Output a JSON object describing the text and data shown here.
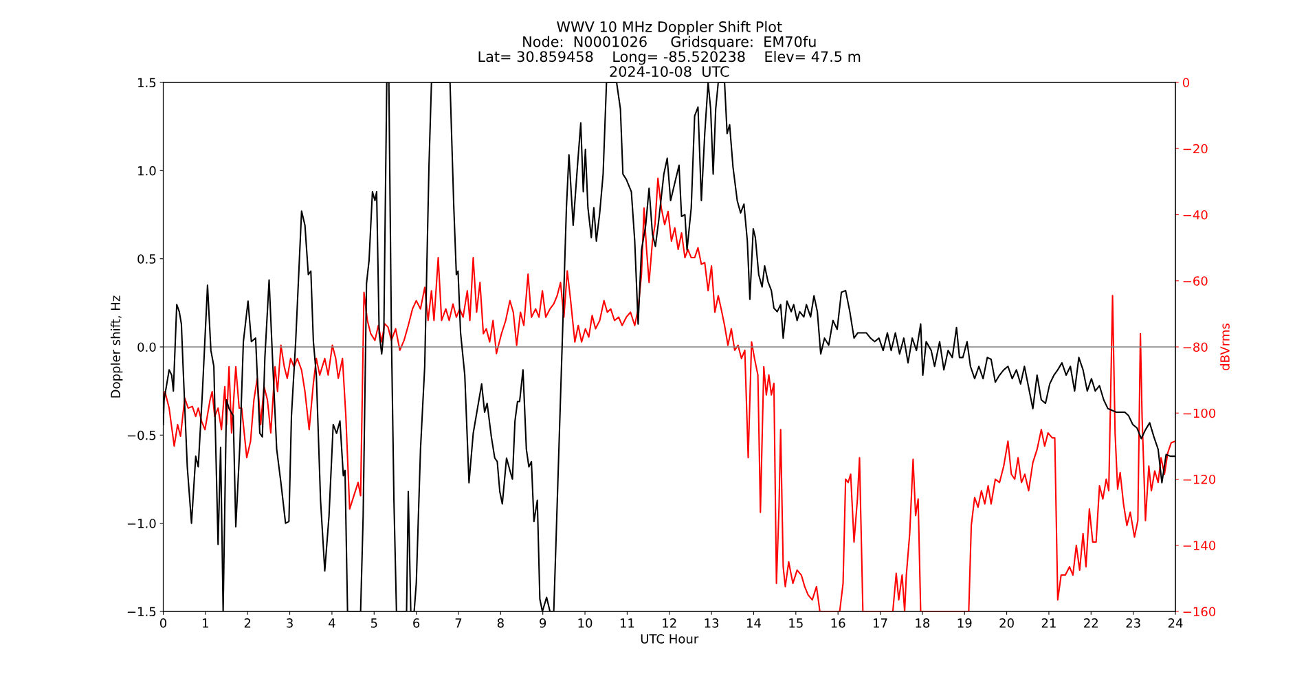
{
  "chart_data": {
    "type": "line",
    "title": "WWV 10 MHz Doppler Shift Plot\nNode:  N0001026     Gridsquare:  EM70fu\nLat= 30.859458    Long= -85.520238    Elev= 47.5 m\n2024-10-08  UTC",
    "xlabel": "UTC Hour",
    "ylabel": "Doppler shift, Hz",
    "y2label": "dBVrms",
    "xlim": [
      0,
      24
    ],
    "xticks": [
      0,
      1,
      2,
      3,
      4,
      5,
      6,
      7,
      8,
      9,
      10,
      11,
      12,
      13,
      14,
      15,
      16,
      17,
      18,
      19,
      20,
      21,
      22,
      23,
      24
    ],
    "ylim": [
      -1.5,
      1.5
    ],
    "yticks": [
      {
        "value": -1.5,
        "label": "−1.5"
      },
      {
        "value": -1.0,
        "label": "−1.0"
      },
      {
        "value": -0.5,
        "label": "−0.5"
      },
      {
        "value": 0.0,
        "label": "0.0"
      },
      {
        "value": 0.5,
        "label": "0.5"
      },
      {
        "value": 1.0,
        "label": "1.0"
      },
      {
        "value": 1.5,
        "label": "1.5"
      }
    ],
    "y2lim": [
      -160,
      0
    ],
    "y2ticks": [
      {
        "value": -160,
        "label": "−160"
      },
      {
        "value": -140,
        "label": "−140"
      },
      {
        "value": -120,
        "label": "−120"
      },
      {
        "value": -100,
        "label": "−100"
      },
      {
        "value": -80,
        "label": "−80"
      },
      {
        "value": -60,
        "label": "−60"
      },
      {
        "value": -40,
        "label": "−40"
      },
      {
        "value": -20,
        "label": "−20"
      },
      {
        "value": 0,
        "label": "0"
      }
    ],
    "grid": false,
    "legend": false,
    "marker": "none",
    "line_style": "solid",
    "ref_lines": [
      {
        "axis": "y",
        "value": 0,
        "color": "#808080",
        "line_style": "solid"
      }
    ],
    "series": [
      {
        "color": "#000000",
        "axis": "y",
        "x": [
          0.0,
          0.02,
          0.14,
          0.2,
          0.24,
          0.32,
          0.38,
          0.43,
          0.47,
          0.57,
          0.67,
          0.77,
          0.83,
          0.93,
          1.05,
          1.13,
          1.2,
          1.3,
          1.36,
          1.42,
          1.5,
          1.56,
          1.66,
          1.72,
          1.82,
          1.9,
          2.01,
          2.09,
          2.19,
          2.29,
          2.35,
          2.41,
          2.51,
          2.59,
          2.69,
          2.79,
          2.9,
          2.98,
          3.04,
          3.14,
          3.28,
          3.36,
          3.44,
          3.5,
          3.56,
          3.63,
          3.73,
          3.83,
          3.93,
          4.03,
          4.11,
          4.19,
          4.27,
          4.31,
          4.37,
          4.68,
          4.74,
          4.82,
          4.88,
          4.96,
          5.02,
          5.06,
          5.12,
          5.18,
          5.23,
          5.3,
          5.35,
          5.41,
          5.47,
          5.53,
          5.77,
          5.81,
          5.87,
          5.95,
          6.0,
          6.1,
          6.2,
          6.3,
          6.36,
          6.8,
          6.89,
          6.95,
          6.99,
          7.05,
          7.15,
          7.25,
          7.35,
          7.45,
          7.55,
          7.62,
          7.68,
          7.78,
          7.86,
          7.92,
          7.98,
          8.04,
          8.14,
          8.22,
          8.28,
          8.34,
          8.4,
          8.45,
          8.53,
          8.61,
          8.67,
          8.73,
          8.79,
          8.87,
          8.93,
          8.99,
          9.09,
          9.17,
          9.26,
          9.32,
          9.4,
          9.48,
          9.56,
          9.62,
          9.72,
          9.82,
          9.9,
          9.96,
          10.01,
          10.07,
          10.15,
          10.21,
          10.27,
          10.35,
          10.43,
          10.51,
          10.75,
          10.84,
          10.9,
          10.98,
          11.1,
          11.18,
          11.26,
          11.34,
          11.44,
          11.52,
          11.6,
          11.67,
          11.75,
          11.87,
          11.95,
          12.03,
          12.13,
          12.23,
          12.29,
          12.37,
          12.42,
          12.52,
          12.6,
          12.68,
          12.76,
          12.84,
          12.92,
          12.98,
          13.04,
          13.1,
          13.16,
          13.31,
          13.37,
          13.43,
          13.51,
          13.61,
          13.69,
          13.77,
          13.85,
          13.91,
          13.99,
          14.04,
          14.12,
          14.2,
          14.26,
          14.34,
          14.42,
          14.48,
          14.56,
          14.64,
          14.7,
          14.79,
          14.89,
          14.95,
          15.03,
          15.09,
          15.19,
          15.25,
          15.35,
          15.43,
          15.51,
          15.59,
          15.68,
          15.78,
          15.88,
          15.98,
          16.08,
          16.18,
          16.28,
          16.38,
          16.47,
          16.67,
          16.77,
          16.87,
          16.97,
          17.07,
          17.17,
          17.26,
          17.36,
          17.46,
          17.56,
          17.66,
          17.76,
          17.86,
          17.96,
          18.01,
          18.09,
          18.21,
          18.29,
          18.41,
          18.51,
          18.61,
          18.71,
          18.81,
          18.88,
          18.96,
          19.06,
          19.14,
          19.24,
          19.34,
          19.44,
          19.54,
          19.63,
          19.73,
          19.83,
          19.93,
          20.03,
          20.13,
          20.23,
          20.33,
          20.42,
          20.52,
          20.62,
          20.72,
          20.82,
          20.92,
          21.02,
          21.12,
          21.21,
          21.31,
          21.41,
          21.51,
          21.61,
          21.71,
          21.81,
          21.91,
          22.01,
          22.1,
          22.2,
          22.3,
          22.4,
          22.6,
          22.8,
          22.89,
          22.99,
          23.09,
          23.19,
          23.29,
          23.39,
          23.49,
          23.59,
          23.68,
          23.78,
          23.88,
          24.0
        ],
        "values": [
          -0.44,
          -0.3,
          -0.13,
          -0.16,
          -0.25,
          0.24,
          0.2,
          0.13,
          -0.11,
          -0.68,
          -1.0,
          -0.62,
          -0.68,
          -0.25,
          0.35,
          -0.02,
          -0.11,
          -1.12,
          -0.57,
          -1.5,
          -0.3,
          -0.35,
          -0.39,
          -1.02,
          -0.54,
          0.03,
          0.26,
          0.03,
          0.05,
          -0.49,
          -0.51,
          -0.06,
          0.38,
          -0.06,
          -0.58,
          -0.77,
          -1.0,
          -0.99,
          -0.39,
          0.03,
          0.77,
          0.69,
          0.41,
          0.43,
          0.03,
          -0.16,
          -0.87,
          -1.27,
          -0.96,
          -0.44,
          -0.49,
          -0.42,
          -0.73,
          -0.7,
          -1.5,
          -1.5,
          -0.96,
          0.36,
          0.49,
          0.88,
          0.83,
          0.88,
          0.08,
          -0.04,
          0.08,
          1.5,
          1.5,
          0.08,
          -0.87,
          -1.5,
          -1.5,
          -0.82,
          -1.5,
          -1.5,
          -1.34,
          -0.58,
          -0.11,
          1.02,
          1.5,
          1.5,
          0.79,
          0.41,
          0.43,
          0.08,
          -0.16,
          -0.77,
          -0.49,
          -0.35,
          -0.21,
          -0.37,
          -0.32,
          -0.51,
          -0.63,
          -0.65,
          -0.82,
          -0.89,
          -0.63,
          -0.7,
          -0.75,
          -0.42,
          -0.31,
          -0.31,
          -0.13,
          -0.58,
          -0.68,
          -0.65,
          -0.99,
          -0.87,
          -1.43,
          -1.5,
          -1.42,
          -1.5,
          -1.5,
          -1.05,
          -0.44,
          0.17,
          0.79,
          1.09,
          0.69,
          1.02,
          1.27,
          0.88,
          1.12,
          0.79,
          0.62,
          0.79,
          0.6,
          0.76,
          0.98,
          1.5,
          1.5,
          1.35,
          0.98,
          0.95,
          0.88,
          0.6,
          0.13,
          0.55,
          0.69,
          0.9,
          0.64,
          0.57,
          0.72,
          0.98,
          1.07,
          0.83,
          0.93,
          1.03,
          0.74,
          0.75,
          0.55,
          0.79,
          1.31,
          1.36,
          0.83,
          1.21,
          1.5,
          1.35,
          0.98,
          1.35,
          1.5,
          1.5,
          1.21,
          1.26,
          1.02,
          0.83,
          0.76,
          0.81,
          0.6,
          0.27,
          0.67,
          0.62,
          0.41,
          0.34,
          0.46,
          0.37,
          0.32,
          0.22,
          0.2,
          0.24,
          0.05,
          0.26,
          0.2,
          0.24,
          0.15,
          0.2,
          0.17,
          0.24,
          0.17,
          0.29,
          0.2,
          -0.04,
          0.05,
          0.01,
          0.15,
          0.1,
          0.31,
          0.32,
          0.2,
          0.05,
          0.08,
          0.08,
          0.05,
          0.03,
          0.05,
          -0.02,
          0.08,
          -0.02,
          0.08,
          -0.04,
          0.05,
          -0.09,
          0.05,
          -0.02,
          0.13,
          -0.16,
          0.03,
          -0.02,
          -0.11,
          0.03,
          -0.13,
          -0.02,
          -0.06,
          0.11,
          -0.06,
          -0.06,
          0.03,
          -0.11,
          -0.18,
          -0.11,
          -0.18,
          -0.06,
          -0.07,
          -0.2,
          -0.16,
          -0.13,
          -0.11,
          -0.18,
          -0.13,
          -0.21,
          -0.11,
          -0.23,
          -0.35,
          -0.16,
          -0.3,
          -0.32,
          -0.21,
          -0.16,
          -0.13,
          -0.09,
          -0.16,
          -0.11,
          -0.25,
          -0.06,
          -0.13,
          -0.25,
          -0.18,
          -0.25,
          -0.22,
          -0.3,
          -0.35,
          -0.37,
          -0.37,
          -0.39,
          -0.44,
          -0.46,
          -0.52,
          -0.47,
          -0.43,
          -0.51,
          -0.58,
          -0.77,
          -0.61,
          -0.62,
          -0.62
        ]
      },
      {
        "color": "#ff0000",
        "axis": "y2",
        "x": [
          0.0,
          0.04,
          0.14,
          0.26,
          0.34,
          0.41,
          0.51,
          0.59,
          0.69,
          0.77,
          0.83,
          0.91,
          0.99,
          1.11,
          1.16,
          1.22,
          1.3,
          1.38,
          1.46,
          1.5,
          1.56,
          1.62,
          1.72,
          1.8,
          1.86,
          1.98,
          2.07,
          2.15,
          2.23,
          2.31,
          2.39,
          2.47,
          2.55,
          2.65,
          2.71,
          2.79,
          2.87,
          2.94,
          3.02,
          3.1,
          3.18,
          3.28,
          3.36,
          3.46,
          3.56,
          3.63,
          3.71,
          3.83,
          3.91,
          4.01,
          4.09,
          4.15,
          4.25,
          4.33,
          4.42,
          4.52,
          4.62,
          4.68,
          4.76,
          4.84,
          4.92,
          5.02,
          5.1,
          5.18,
          5.25,
          5.33,
          5.41,
          5.51,
          5.61,
          5.71,
          5.81,
          5.91,
          6.0,
          6.1,
          6.2,
          6.28,
          6.36,
          6.42,
          6.52,
          6.6,
          6.7,
          6.78,
          6.87,
          6.95,
          7.03,
          7.11,
          7.21,
          7.27,
          7.35,
          7.43,
          7.51,
          7.59,
          7.66,
          7.74,
          7.82,
          7.9,
          8.02,
          8.12,
          8.22,
          8.3,
          8.38,
          8.47,
          8.55,
          8.65,
          8.73,
          8.83,
          8.91,
          8.99,
          9.07,
          9.17,
          9.26,
          9.34,
          9.42,
          9.5,
          9.58,
          9.66,
          9.76,
          9.84,
          9.92,
          10.01,
          10.09,
          10.17,
          10.25,
          10.35,
          10.45,
          10.53,
          10.61,
          10.7,
          10.8,
          10.88,
          10.98,
          11.08,
          11.18,
          11.26,
          11.34,
          11.4,
          11.46,
          11.52,
          11.6,
          11.66,
          11.73,
          11.81,
          11.89,
          11.97,
          12.05,
          12.13,
          12.21,
          12.29,
          12.37,
          12.44,
          12.52,
          12.6,
          12.68,
          12.76,
          12.84,
          12.92,
          13.0,
          13.08,
          13.16,
          13.23,
          13.31,
          13.39,
          13.47,
          13.55,
          13.63,
          13.71,
          13.79,
          13.87,
          13.95,
          14.02,
          14.1,
          14.16,
          14.24,
          14.3,
          14.36,
          14.42,
          14.48,
          14.54,
          14.6,
          14.64,
          14.7,
          14.75,
          14.83,
          14.93,
          15.03,
          15.13,
          15.21,
          15.29,
          15.39,
          15.49,
          15.57,
          16.04,
          16.12,
          16.18,
          16.24,
          16.3,
          16.38,
          16.46,
          16.51,
          16.59,
          17.3,
          17.38,
          17.44,
          17.52,
          17.58,
          17.62,
          17.7,
          17.78,
          17.84,
          17.9,
          17.96,
          19.1,
          19.16,
          19.24,
          19.32,
          19.4,
          19.48,
          19.56,
          19.63,
          19.73,
          19.83,
          19.93,
          20.03,
          20.11,
          20.19,
          20.27,
          20.35,
          20.43,
          20.52,
          20.62,
          20.72,
          20.82,
          20.9,
          20.98,
          21.08,
          21.14,
          21.21,
          21.29,
          21.39,
          21.49,
          21.57,
          21.65,
          21.73,
          21.81,
          21.88,
          21.96,
          22.04,
          22.12,
          22.2,
          22.28,
          22.36,
          22.42,
          22.47,
          22.51,
          22.57,
          22.63,
          22.69,
          22.77,
          22.85,
          22.93,
          23.03,
          23.11,
          23.17,
          23.21,
          23.29,
          23.37,
          23.43,
          23.51,
          23.59,
          23.66,
          23.74,
          23.82,
          23.9,
          24.0
        ],
        "values": [
          -96,
          -93.5,
          -98.5,
          -110,
          -103.5,
          -107,
          -95.5,
          -98.5,
          -98,
          -101,
          -98.5,
          -102.5,
          -105,
          -96,
          -93.5,
          -101,
          -98.5,
          -105,
          -92,
          -103.5,
          -86,
          -106,
          -86,
          -98.5,
          -98.5,
          -113.5,
          -108.5,
          -96,
          -89.5,
          -103.5,
          -92,
          -96,
          -106,
          -86,
          -93.5,
          -79.5,
          -86,
          -89.5,
          -83.5,
          -86,
          -83.5,
          -87,
          -93.5,
          -105,
          -91,
          -83.5,
          -88.5,
          -83.5,
          -88.5,
          -79.5,
          -83.5,
          -89.5,
          -83.5,
          -101,
          -129,
          -125,
          -121,
          -125,
          -63.5,
          -72,
          -76,
          -78,
          -73.5,
          -78.5,
          -73,
          -74,
          -78,
          -74.5,
          -81,
          -78,
          -73.5,
          -68.5,
          -66,
          -68.5,
          -62,
          -72,
          -63,
          -72,
          -53,
          -72,
          -68.5,
          -72,
          -67,
          -71,
          -68.5,
          -71,
          -63,
          -72,
          -53,
          -69.5,
          -60.5,
          -76,
          -74.5,
          -78.5,
          -72,
          -82,
          -76,
          -72,
          -66,
          -69.5,
          -79.5,
          -69.5,
          -73.5,
          -58,
          -71,
          -68.5,
          -71,
          -63,
          -71,
          -68.5,
          -67,
          -64.5,
          -60.5,
          -71,
          -57,
          -66,
          -78.5,
          -73.5,
          -78.5,
          -74.5,
          -77,
          -70.5,
          -74.5,
          -72,
          -66,
          -69.5,
          -68.5,
          -72,
          -71,
          -73.5,
          -71,
          -69.5,
          -73.5,
          -68.5,
          -58,
          -38,
          -50.5,
          -60.5,
          -48,
          -43,
          -29,
          -38,
          -43,
          -39,
          -48,
          -44,
          -50.5,
          -45.5,
          -53,
          -50.5,
          -53,
          -53,
          -50,
          -55,
          -54.5,
          -63,
          -55.5,
          -69.5,
          -64.5,
          -68.5,
          -73.5,
          -79.5,
          -74.5,
          -81,
          -79.5,
          -83.5,
          -81,
          -113.5,
          -78.5,
          -83.5,
          -88.5,
          -130,
          -86,
          -94.5,
          -88.5,
          -94.5,
          -91,
          -151.5,
          -129,
          -105,
          -146.5,
          -152.5,
          -145,
          -151.5,
          -147.5,
          -149,
          -152.5,
          -155,
          -156.5,
          -152.5,
          -160,
          -160,
          -151.5,
          -120,
          -121,
          -118.5,
          -139,
          -126,
          -113.5,
          -160,
          -160,
          -148.5,
          -156.5,
          -149,
          -160,
          -149,
          -136.5,
          -114,
          -131,
          -126,
          -160,
          -160,
          -134,
          -125.5,
          -128.5,
          -123.5,
          -127.5,
          -122,
          -127.5,
          -120,
          -121,
          -116,
          -108.5,
          -118.5,
          -120,
          -113.5,
          -121,
          -118.5,
          -123.5,
          -115,
          -111,
          -105,
          -110,
          -106,
          -107.5,
          -107.5,
          -156.5,
          -149,
          -149,
          -146.5,
          -149,
          -140,
          -147.5,
          -136.5,
          -146.5,
          -129,
          -139,
          -139,
          -122,
          -126,
          -120,
          -123.5,
          -91,
          -64.5,
          -106,
          -123,
          -118,
          -127.5,
          -134,
          -130,
          -137.5,
          -132.5,
          -76,
          -101,
          -132.5,
          -116,
          -123.5,
          -117.5,
          -121,
          -113.5,
          -118.5,
          -112,
          -109,
          -108.5
        ]
      }
    ]
  }
}
